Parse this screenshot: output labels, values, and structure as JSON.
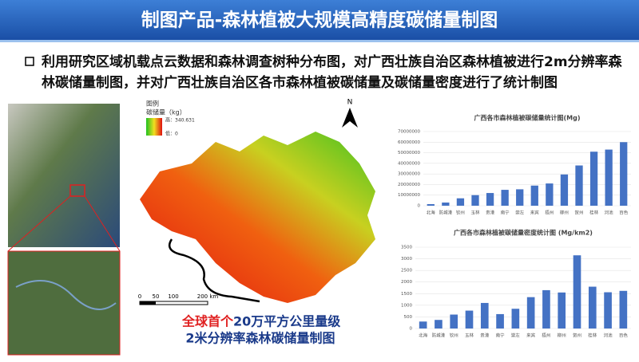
{
  "header": {
    "title": "制图产品-森林植被大规模高精度碳储量制图"
  },
  "bullet": {
    "lines": [
      "利用研究区域机载点云数据和森林调查树种分布图，对广西壮族自治区森林植被进行2m分辨率森",
      "林碳储量制图，并对广西壮族自治区各市森林植被碳储量及碳储量密度进行了统计制图"
    ]
  },
  "map": {
    "legend_title": "图例",
    "legend_unit": "碳储量（kg）",
    "legend_high": "高：340.631",
    "legend_low": "低：0",
    "north": "N",
    "scale_labels": [
      "0",
      "50",
      "100",
      "200 km"
    ]
  },
  "caption": {
    "red": "全球首个",
    "blue1": "20万平方公里量级",
    "blue2": "2米分辨率森林碳储量制图"
  },
  "chart_data": [
    {
      "type": "bar",
      "title": "广西各市森林植被碳储量统计图(Mg)",
      "color": "#4472c4",
      "categories": [
        "北海",
        "防城港",
        "钦州",
        "玉林",
        "贵港",
        "南宁",
        "崇左",
        "来宾",
        "梧州",
        "柳州",
        "贺州",
        "桂林",
        "河池",
        "百色"
      ],
      "values": [
        1500000,
        3000000,
        7000000,
        10000000,
        12000000,
        15000000,
        15500000,
        19000000,
        21000000,
        29500000,
        38000000,
        51000000,
        53000000,
        60000000
      ],
      "ylim": [
        0,
        70000000
      ],
      "yticks": [
        0,
        10000000,
        20000000,
        30000000,
        40000000,
        50000000,
        60000000,
        70000000
      ]
    },
    {
      "type": "bar",
      "title": "广西各市森林植被碳储量密度统计图 (Mg/km2)",
      "color": "#4472c4",
      "categories": [
        "北海",
        "防城港",
        "钦州",
        "玉林",
        "贵港",
        "南宁",
        "崇左",
        "来宾",
        "梧州",
        "柳州",
        "贺州",
        "桂林",
        "河池",
        "百色"
      ],
      "values": [
        300,
        370,
        600,
        770,
        1100,
        620,
        850,
        1350,
        1650,
        1550,
        3150,
        1800,
        1560,
        1620
      ],
      "ylim": [
        0,
        3500
      ],
      "yticks": [
        0,
        500,
        1000,
        1500,
        2000,
        2500,
        3000,
        3500
      ]
    }
  ]
}
